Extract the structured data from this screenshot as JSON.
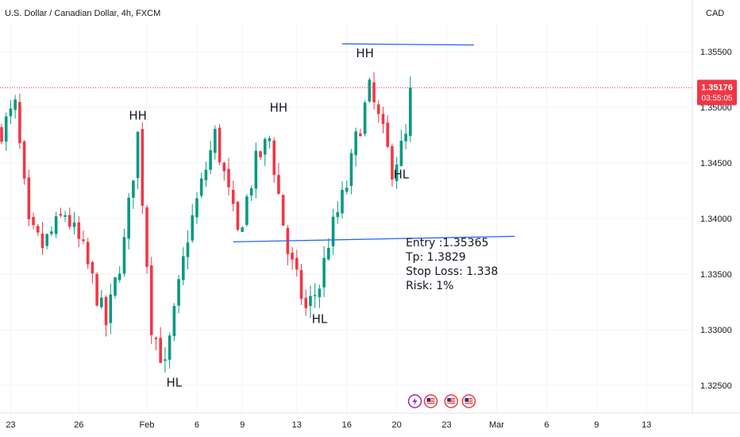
{
  "header": {
    "title": "U.S. Dollar / Canadian Dollar, 4h, FXCM",
    "currency": "CAD"
  },
  "price_tag": {
    "price": "1.35176",
    "countdown": "03:55:05",
    "color": "#f23645"
  },
  "colors": {
    "up": "#089981",
    "down": "#f23645",
    "line": "#2962ff"
  },
  "chart_data": {
    "type": "candlestick",
    "title": "U.S. Dollar / Canadian Dollar, 4h, FXCM",
    "y_ticks": [
      "1.35500",
      "1.35000",
      "1.34500",
      "1.34000",
      "1.33500",
      "1.33000",
      "1.32500"
    ],
    "y_tick_values": [
      1.355,
      1.35,
      1.345,
      1.34,
      1.335,
      1.33,
      1.325
    ],
    "ylim": [
      1.3225,
      1.3575
    ],
    "x_ticks": [
      "23",
      "26",
      "Feb",
      "6",
      "9",
      "13",
      "16",
      "20",
      "23",
      "Mar",
      "6",
      "9",
      "13"
    ],
    "x_tick_bars": [
      2,
      17,
      32,
      43,
      53,
      65,
      76,
      87,
      98,
      109,
      120,
      131,
      142
    ],
    "bars_total": 153,
    "current_price": 1.35176,
    "anchors": [
      {
        "bar": 0,
        "price": 1.348
      },
      {
        "bar": 3,
        "price": 1.35
      },
      {
        "bar": 6,
        "price": 1.339
      },
      {
        "bar": 9,
        "price": 1.3375
      },
      {
        "bar": 14,
        "price": 1.3405
      },
      {
        "bar": 18,
        "price": 1.337
      },
      {
        "bar": 23,
        "price": 1.3305
      },
      {
        "bar": 27,
        "price": 1.3378
      },
      {
        "bar": 30,
        "price": 1.3475
      },
      {
        "bar": 33,
        "price": 1.3305
      },
      {
        "bar": 36,
        "price": 1.3265
      },
      {
        "bar": 41,
        "price": 1.3385
      },
      {
        "bar": 47,
        "price": 1.3475
      },
      {
        "bar": 52,
        "price": 1.3385
      },
      {
        "bar": 56,
        "price": 1.345
      },
      {
        "bar": 59,
        "price": 1.3472
      },
      {
        "bar": 63,
        "price": 1.337
      },
      {
        "bar": 67,
        "price": 1.3318
      },
      {
        "bar": 70,
        "price": 1.334
      },
      {
        "bar": 72,
        "price": 1.338
      },
      {
        "bar": 76,
        "price": 1.343
      },
      {
        "bar": 78,
        "price": 1.347
      },
      {
        "bar": 81,
        "price": 1.3515
      },
      {
        "bar": 84,
        "price": 1.3475
      },
      {
        "bar": 86,
        "price": 1.3445
      },
      {
        "bar": 89,
        "price": 1.3472
      },
      {
        "bar": 90,
        "price": 1.3517
      }
    ],
    "trendlines": [
      {
        "bar1": 75,
        "price1": 1.3557,
        "bar2": 104,
        "price2": 1.3556
      },
      {
        "bar1": 51,
        "price1": 1.3379,
        "bar2": 113,
        "price2": 1.3384
      }
    ],
    "annotations": [
      {
        "text": "HH",
        "bar": 30,
        "price": 1.3489
      },
      {
        "text": "HL",
        "bar": 38,
        "price": 1.3249
      },
      {
        "text": "HH",
        "bar": 61,
        "price": 1.3496
      },
      {
        "text": "HL",
        "bar": 70,
        "price": 1.3306
      },
      {
        "text": "HH",
        "bar": 80,
        "price": 1.3545
      },
      {
        "text": "HL",
        "bar": 88,
        "price": 1.3436
      }
    ],
    "note_lines": [
      "Entry :1.35365",
      "Tp: 1.3829",
      "Stop Loss: 1.338",
      "Risk: 1%"
    ],
    "note_pos": {
      "bar": 89,
      "price": 1.3375
    },
    "event_icons": [
      "lightning-icon",
      "us-flag-icon",
      "us-flag-icon",
      "us-flag-icon"
    ],
    "event_bars": [
      91,
      99,
      102
    ]
  }
}
